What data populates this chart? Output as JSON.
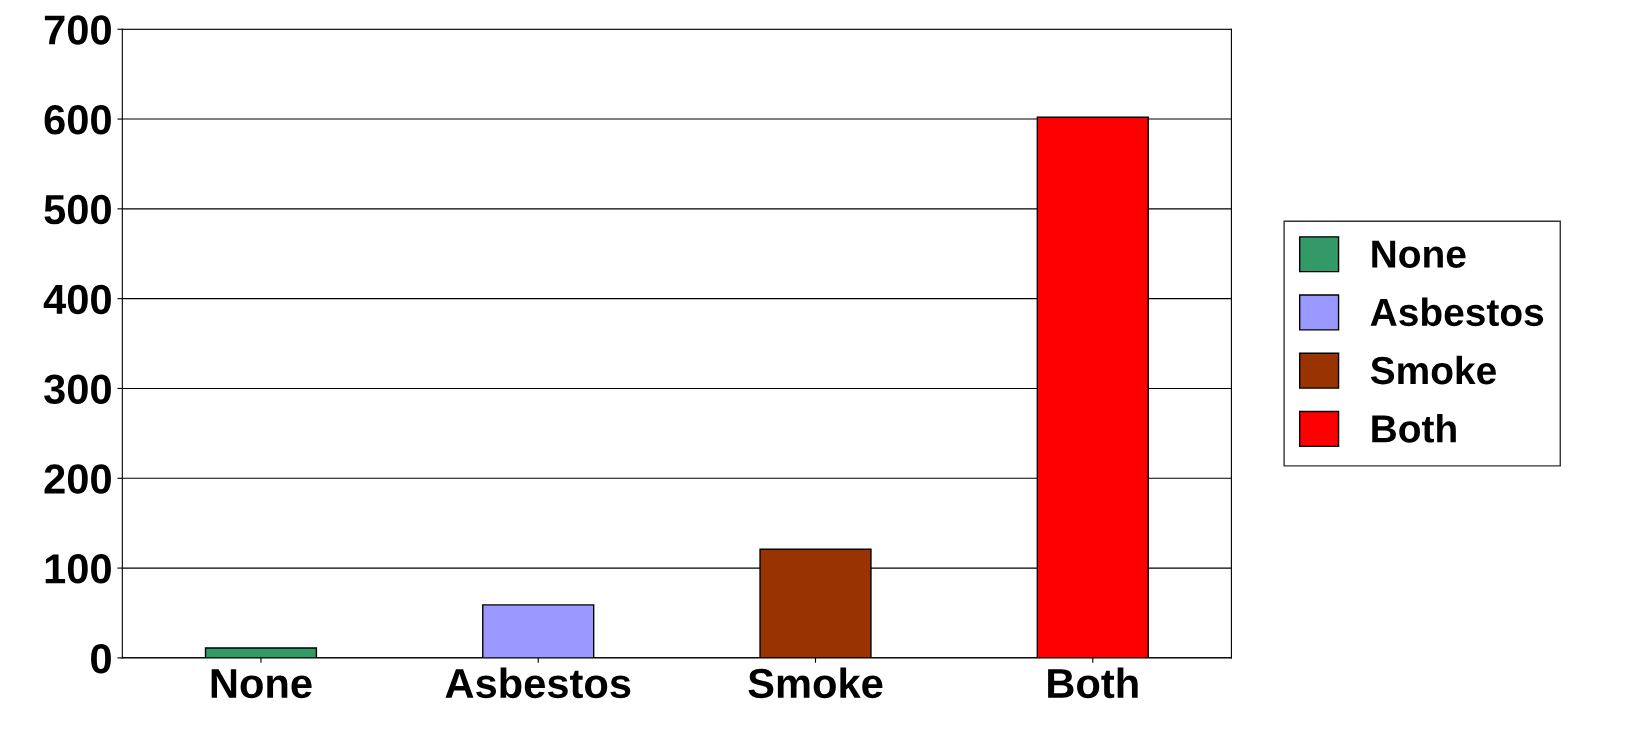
{
  "chart_data": {
    "type": "bar",
    "categories": [
      "None",
      "Asbestos",
      "Smoke",
      "Both"
    ],
    "series": [
      {
        "name": "None",
        "color": "#339966",
        "values": [
          11,
          null,
          null,
          null
        ]
      },
      {
        "name": "Asbestos",
        "color": "#9999ff",
        "values": [
          null,
          59,
          null,
          null
        ]
      },
      {
        "name": "Smoke",
        "color": "#993300",
        "values": [
          null,
          null,
          121,
          null
        ]
      },
      {
        "name": "Both",
        "color": "#ff0000",
        "values": [
          null,
          null,
          null,
          602
        ]
      }
    ],
    "ylim": [
      0,
      700
    ],
    "yticks": [
      0,
      100,
      200,
      300,
      400,
      500,
      600,
      700
    ],
    "grid": "y",
    "legend": "right"
  }
}
